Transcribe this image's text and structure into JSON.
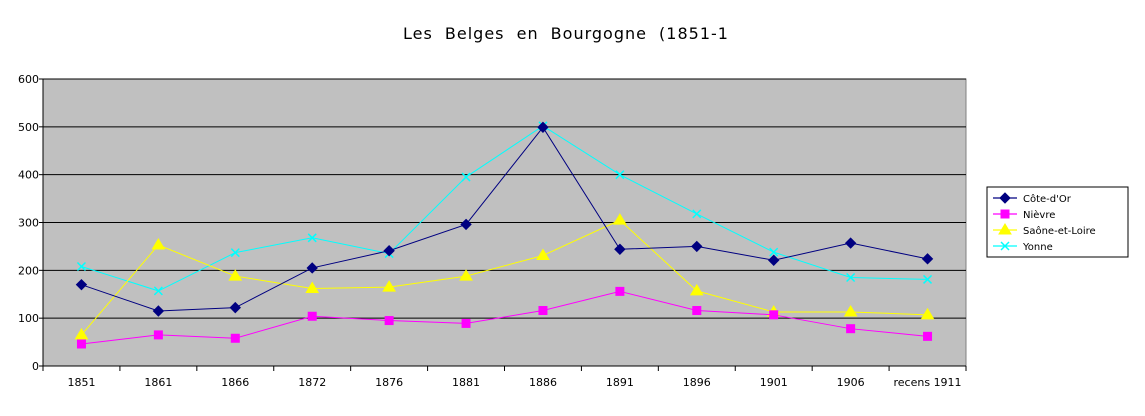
{
  "chart_data": {
    "type": "line",
    "title": "Les Belges en Bourgogne (1851-1",
    "xlabel": "",
    "ylabel": "",
    "categories": [
      "1851",
      "1861",
      "1866",
      "1872",
      "1876",
      "1881",
      "1886",
      "1891",
      "1896",
      "1901",
      "1906",
      "recens 1911"
    ],
    "ylim": [
      0,
      600
    ],
    "yticks": [
      "0",
      "100",
      "200",
      "300",
      "400",
      "500",
      "600"
    ],
    "grid": true,
    "legend_position": "right",
    "plot_background": "#c0c0c0",
    "series": [
      {
        "name": "Côte-d'Or",
        "color": "#000080",
        "marker": "diamond",
        "values": [
          170,
          115,
          122,
          205,
          241,
          296,
          499,
          244,
          250,
          221,
          257,
          224
        ]
      },
      {
        "name": "Nièvre",
        "color": "#ff00ff",
        "marker": "square",
        "values": [
          46,
          65,
          58,
          104,
          95,
          89,
          116,
          156,
          116,
          107,
          78,
          62
        ]
      },
      {
        "name": "Saône-et-Loire",
        "color": "#ffff00",
        "marker": "triangle",
        "values": [
          65,
          253,
          188,
          162,
          165,
          188,
          231,
          305,
          157,
          113,
          113,
          107
        ]
      },
      {
        "name": "Yonne",
        "color": "#00ffff",
        "marker": "x",
        "values": [
          208,
          157,
          237,
          268,
          235,
          395,
          502,
          400,
          318,
          238,
          185,
          181
        ]
      }
    ]
  }
}
